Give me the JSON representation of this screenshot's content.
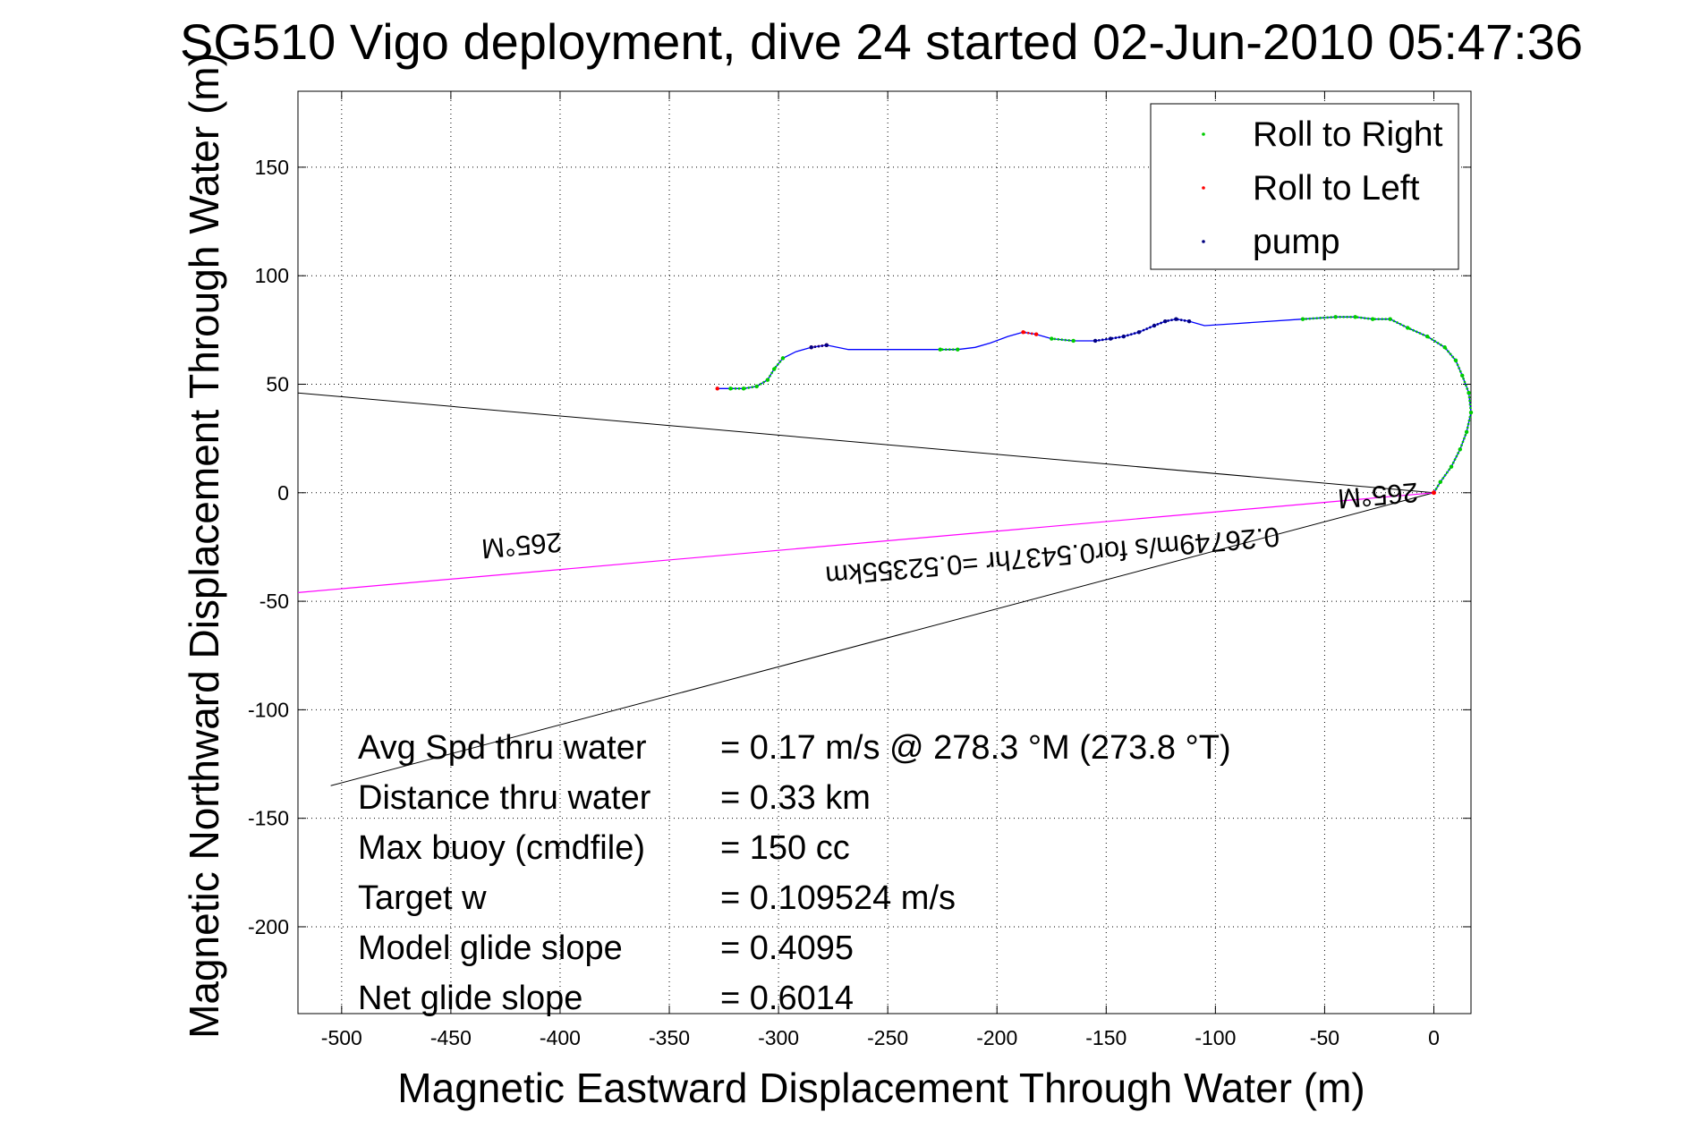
{
  "chart_data": {
    "type": "line",
    "title": "SG510 Vigo deployment, dive 24 started 02-Jun-2010 05:47:36",
    "xlabel": "Magnetic Eastward Displacement Through Water (m)",
    "ylabel": "Magnetic Northward Displacement Through Water (m)",
    "xlim": [
      -520,
      17
    ],
    "ylim": [
      -240,
      185
    ],
    "xticks": [
      -500,
      -450,
      -400,
      -350,
      -300,
      -250,
      -200,
      -150,
      -100,
      -50,
      0
    ],
    "yticks": [
      -200,
      -150,
      -100,
      -50,
      0,
      50,
      100,
      150
    ],
    "grid": true,
    "legend_position": "top-right",
    "legend": [
      {
        "label": "Roll to Right",
        "color": "#00cc00"
      },
      {
        "label": "Roll to Left",
        "color": "#ff0000"
      },
      {
        "label": "pump",
        "color": "#000080"
      }
    ],
    "track": {
      "color": "#0000ff",
      "x": [
        0,
        3,
        8,
        12,
        15,
        17,
        16,
        13,
        10,
        5,
        -3,
        -12,
        -20,
        -28,
        -36,
        -45,
        -60,
        -75,
        -90,
        -105,
        -112,
        -118,
        -123,
        -128,
        -135,
        -142,
        -148,
        -155,
        -165,
        -175,
        -182,
        -188,
        -195,
        -203,
        -210,
        -218,
        -226,
        -235,
        -250,
        -268,
        -278,
        -285,
        -292,
        -298,
        -302,
        -305,
        -310,
        -316,
        -322,
        -328
      ],
      "y": [
        0,
        5,
        12,
        20,
        28,
        37,
        46,
        54,
        61,
        67,
        72,
        76,
        80,
        80,
        81,
        81,
        80,
        79,
        78,
        77,
        79,
        80,
        79,
        77,
        74,
        72,
        71,
        70,
        70,
        71,
        73,
        74,
        72,
        69,
        67,
        66,
        66,
        66,
        66,
        66,
        68,
        67,
        65,
        62,
        57,
        52,
        49,
        48,
        48,
        48
      ]
    },
    "segments": [
      {
        "kind": "Roll to Right",
        "color": "#00cc00",
        "from": 0,
        "to": 16
      },
      {
        "kind": "Roll to Right",
        "color": "#00cc00",
        "from": 28,
        "to": 29
      },
      {
        "kind": "Roll to Right",
        "color": "#00cc00",
        "from": 35,
        "to": 36
      },
      {
        "kind": "Roll to Right",
        "color": "#00cc00",
        "from": 43,
        "to": 48
      },
      {
        "kind": "Roll to Left",
        "color": "#ff0000",
        "from": 30,
        "to": 31
      },
      {
        "kind": "Roll to Left",
        "color": "#ff0000",
        "from": 40,
        "to": 41
      },
      {
        "kind": "Roll to Left",
        "color": "#ff0000",
        "from": 49,
        "to": 49
      },
      {
        "kind": "pump",
        "color": "#000080",
        "from": 20,
        "to": 27
      },
      {
        "kind": "pump",
        "color": "#000080",
        "from": 40,
        "to": 41
      }
    ],
    "current_vector": {
      "color": "#ff00ff",
      "x": [
        0,
        -520
      ],
      "y": [
        0,
        -46
      ],
      "label": "0.26749m/s for0.5437hr =0.52355km",
      "label_x": -175,
      "label_y": -25,
      "label_angle_deg": 175
    },
    "rays": [
      {
        "color": "#000000",
        "x": [
          0,
          -520
        ],
        "y": [
          0,
          46
        ]
      },
      {
        "color": "#000000",
        "x": [
          0,
          -505
        ],
        "y": [
          0,
          -135
        ]
      }
    ],
    "heading_labels": [
      {
        "text": "265°M",
        "x": -418,
        "y": -20,
        "angle_deg": 175
      },
      {
        "text": "265°M",
        "x": -26,
        "y": 3,
        "angle_deg": 175
      }
    ],
    "stats": [
      {
        "label": "Avg Spd thru water",
        "value": "=  0.17 m/s @ 278.3 °M (273.8 °T)"
      },
      {
        "label": "Distance thru water",
        "value": "=  0.33 km"
      },
      {
        "label": "Max buoy (cmdfile)",
        "value": "= 150 cc"
      },
      {
        "label": "Target w",
        "value": "= 0.109524 m/s"
      },
      {
        "label": "Model glide slope",
        "value": "= 0.4095"
      },
      {
        "label": "Net glide slope",
        "value": "= 0.6014"
      }
    ]
  }
}
